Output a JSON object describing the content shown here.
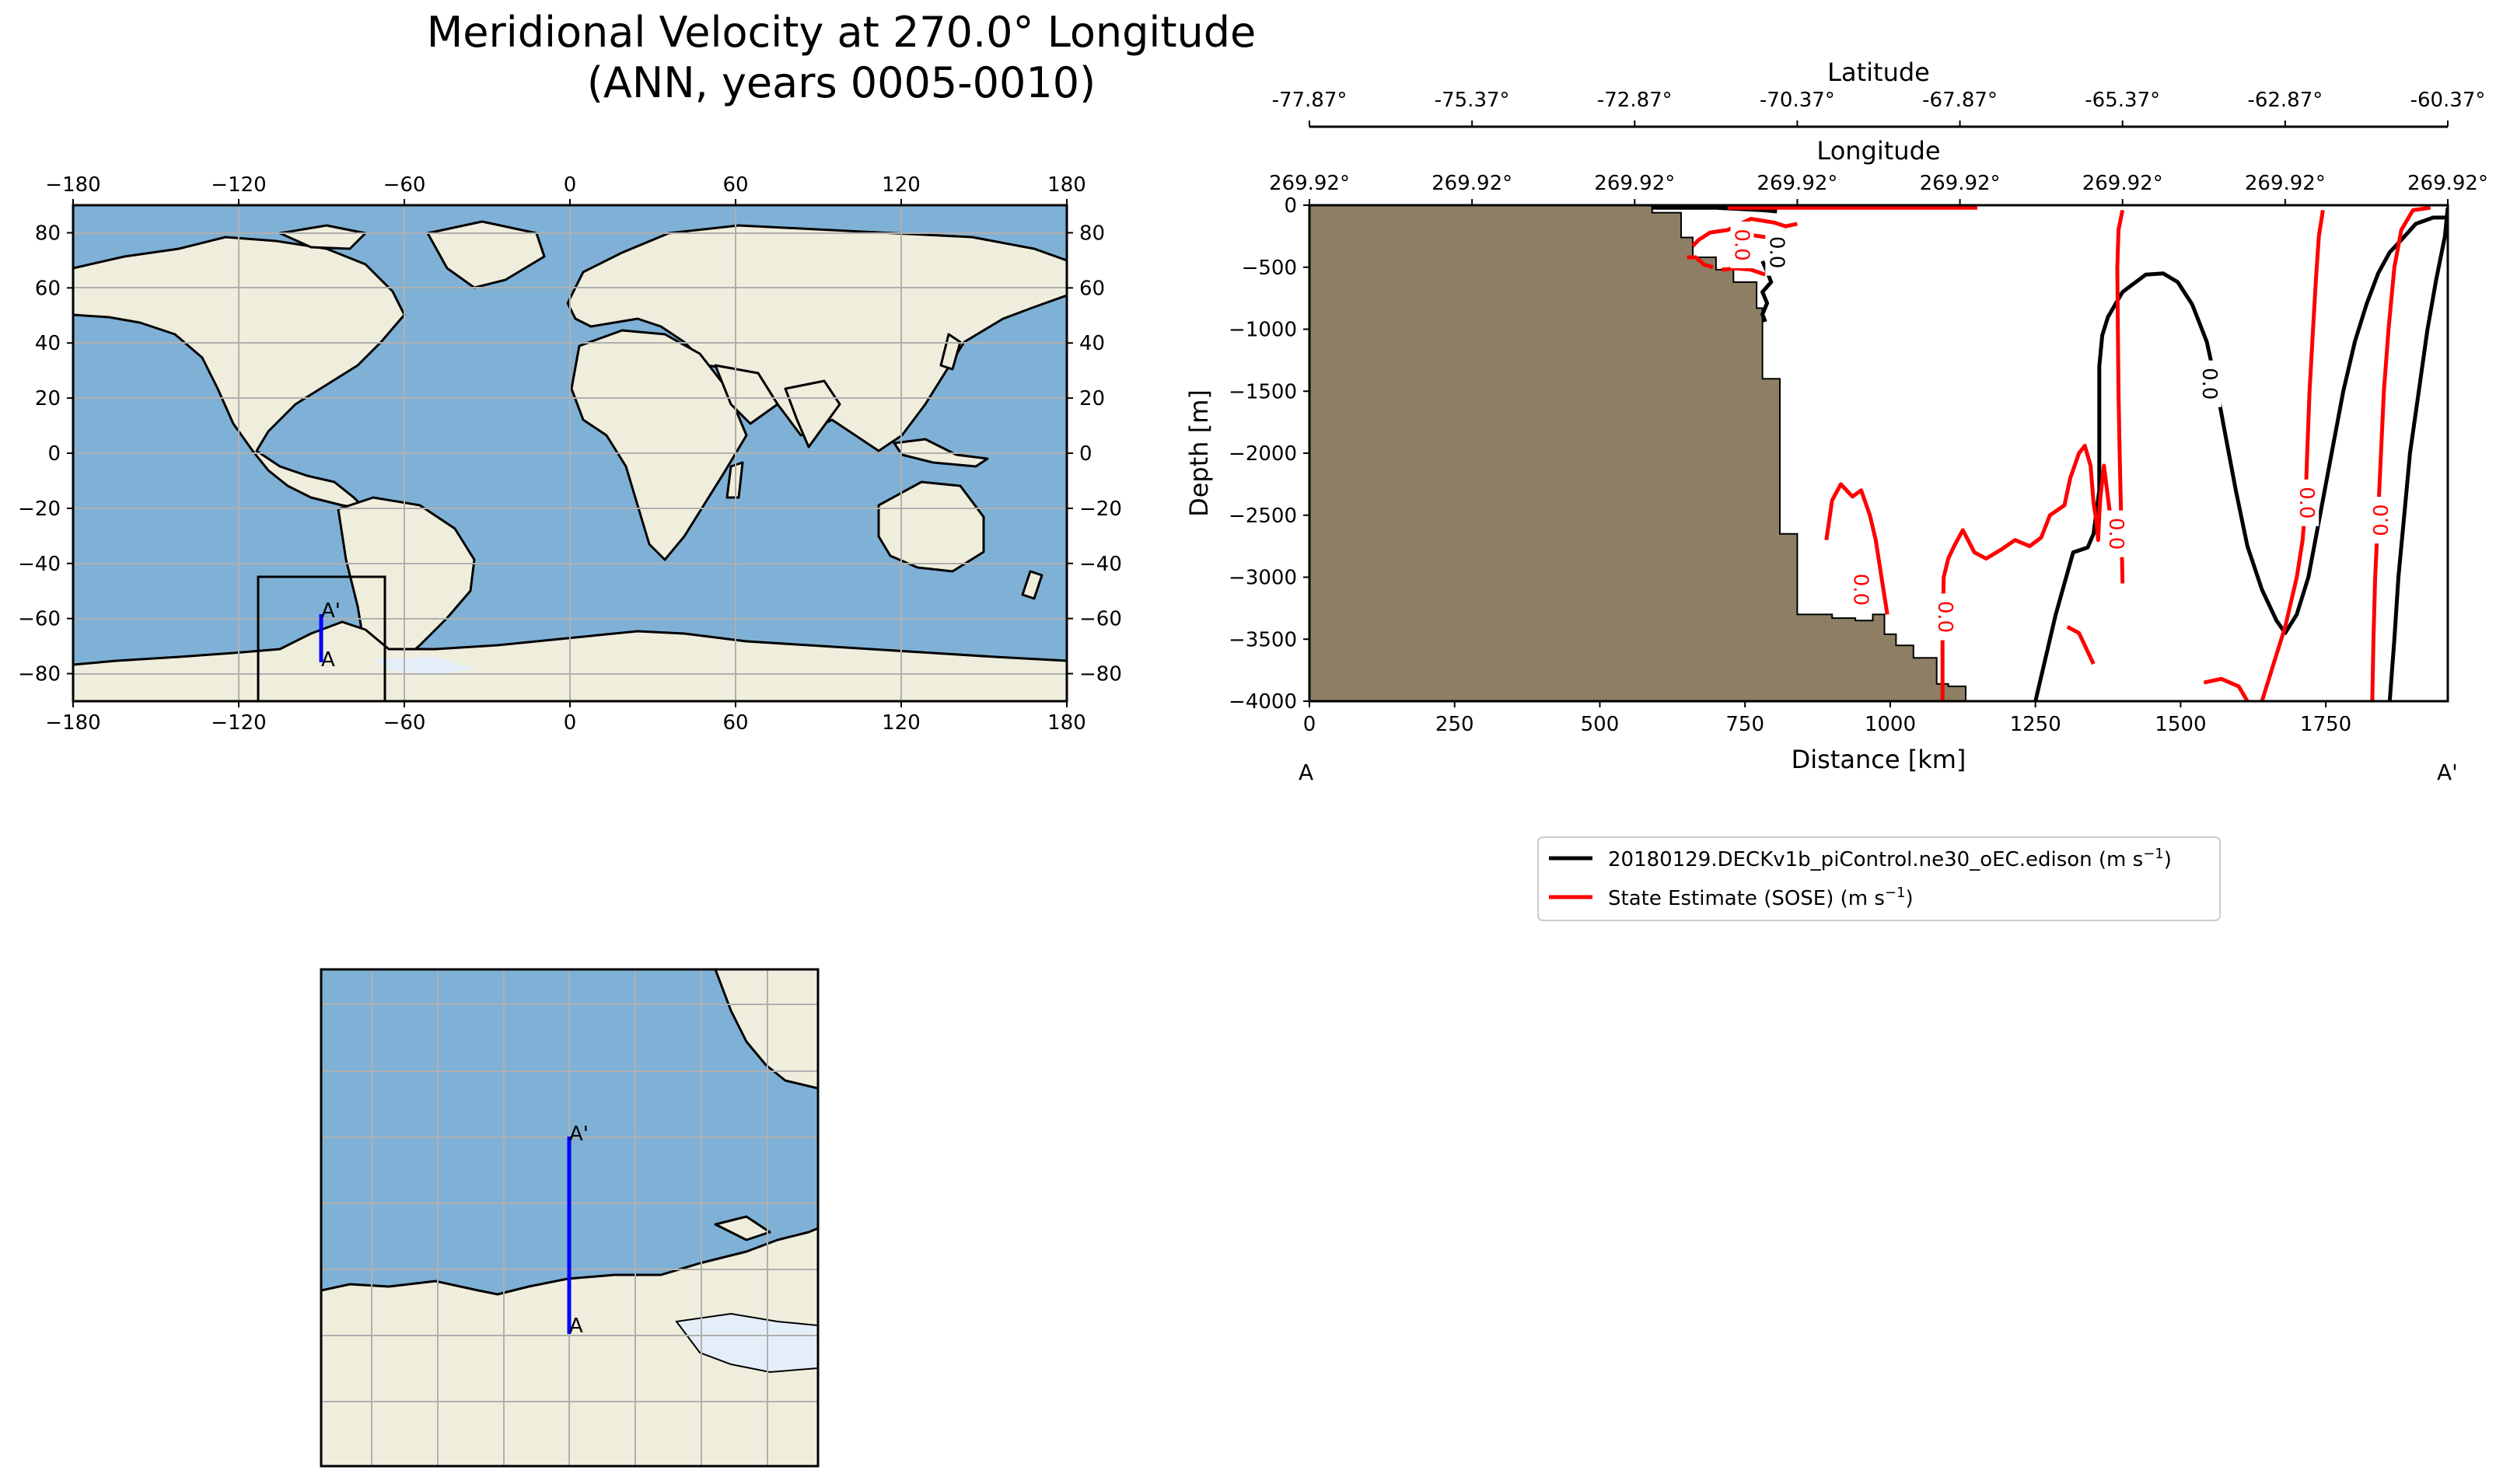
{
  "figure": {
    "title_line1": "Meridional Velocity at 270.0° Longitude",
    "title_line2": "(ANN, years 0005-0010)"
  },
  "colors": {
    "ocean": "#7fb1d6",
    "land": "#efeddc",
    "ice": "#e3eef8",
    "seafloor": "#8e7f64",
    "model": "#000000",
    "obs": "#ff0000",
    "transect": "#0000ff",
    "grid": "#b0b0b0"
  },
  "chart_data": [
    {
      "type": "map",
      "name": "global-map",
      "xticks": [
        -180,
        -120,
        -60,
        0,
        60,
        120,
        180
      ],
      "yticks": [
        80,
        60,
        40,
        20,
        0,
        -20,
        -40,
        -60,
        -80
      ],
      "xlim": [
        -180,
        180
      ],
      "ylim": [
        -90,
        90
      ],
      "inset_box": {
        "lon": [
          -113,
          -67
        ],
        "lat": [
          -90,
          -44
        ]
      },
      "transect": {
        "lon": -90,
        "lat_start": -77.87,
        "lat_end": -60.37,
        "start_label": "A",
        "end_label": "A'"
      }
    },
    {
      "type": "map",
      "name": "zoom-map",
      "lon_range": [
        -113,
        -67
      ],
      "lat_range": [
        -90,
        -44
      ],
      "transect": {
        "lon": -90,
        "lat_start": -77.87,
        "lat_end": -60.37,
        "start_label": "A",
        "end_label": "A'"
      }
    },
    {
      "type": "contour",
      "name": "transect-section",
      "xlabel": "Distance [km]",
      "ylabel": "Depth [m]",
      "top_axis_label": "Latitude",
      "middle_axis_label": "Longitude",
      "xlim": [
        0,
        1960
      ],
      "ylim": [
        -4000,
        0
      ],
      "xticks": [
        0,
        250,
        500,
        750,
        1000,
        1250,
        1500,
        1750
      ],
      "yticks": [
        0,
        -500,
        -1000,
        -1500,
        -2000,
        -2500,
        -3000,
        -3500,
        -4000
      ],
      "longitude_ticks": [
        "269.92°",
        "269.92°",
        "269.92°",
        "269.92°",
        "269.92°",
        "269.92°",
        "269.92°",
        "269.92°"
      ],
      "latitude_ticks": [
        "-77.87°",
        "-75.37°",
        "-72.87°",
        "-70.37°",
        "-67.87°",
        "-65.37°",
        "-62.87°",
        "-60.37°"
      ],
      "start_label": "A",
      "end_label": "A'",
      "contour_label": "0.0",
      "seafloor": [
        [
          0,
          -4000
        ],
        [
          0,
          0
        ],
        [
          590,
          0
        ],
        [
          590,
          -60
        ],
        [
          640,
          -60
        ],
        [
          640,
          -260
        ],
        [
          660,
          -260
        ],
        [
          660,
          -420
        ],
        [
          700,
          -420
        ],
        [
          700,
          -520
        ],
        [
          730,
          -520
        ],
        [
          730,
          -620
        ],
        [
          770,
          -620
        ],
        [
          770,
          -830
        ],
        [
          780,
          -830
        ],
        [
          780,
          -1400
        ],
        [
          810,
          -1400
        ],
        [
          810,
          -2650
        ],
        [
          840,
          -2650
        ],
        [
          840,
          -3300
        ],
        [
          900,
          -3300
        ],
        [
          900,
          -3330
        ],
        [
          940,
          -3330
        ],
        [
          940,
          -3350
        ],
        [
          970,
          -3350
        ],
        [
          970,
          -3300
        ],
        [
          990,
          -3300
        ],
        [
          990,
          -3460
        ],
        [
          1010,
          -3460
        ],
        [
          1010,
          -3550
        ],
        [
          1040,
          -3550
        ],
        [
          1040,
          -3650
        ],
        [
          1080,
          -3650
        ],
        [
          1080,
          -3860
        ],
        [
          1100,
          -3860
        ],
        [
          1100,
          -3880
        ],
        [
          1130,
          -3880
        ],
        [
          1130,
          -4000
        ]
      ],
      "series": [
        {
          "name": "20180129.DECKv1b_piControl.ne30_oEC.edison",
          "legend_units": "(m s",
          "color": "#000000",
          "contours": [
            [
              [
                590,
                -20
              ],
              [
                700,
                -20
              ],
              [
                780,
                -40
              ],
              [
                805,
                -50
              ]
            ],
            [
              [
                780,
                -450
              ],
              [
                790,
                -560
              ],
              [
                795,
                -620
              ],
              [
                780,
                -700
              ],
              [
                788,
                -790
              ],
              [
                780,
                -880
              ],
              [
                785,
                -940
              ]
            ],
            [
              [
                1250,
                -4000
              ],
              [
                1265,
                -3700
              ],
              [
                1285,
                -3300
              ],
              [
                1300,
                -3050
              ],
              [
                1315,
                -2800
              ],
              [
                1340,
                -2760
              ],
              [
                1350,
                -2650
              ],
              [
                1360,
                -2300
              ],
              [
                1360,
                -1800
              ],
              [
                1360,
                -1300
              ],
              [
                1365,
                -1050
              ],
              [
                1375,
                -900
              ],
              [
                1400,
                -700
              ],
              [
                1440,
                -560
              ],
              [
                1470,
                -550
              ],
              [
                1495,
                -620
              ],
              [
                1520,
                -800
              ],
              [
                1545,
                -1100
              ],
              [
                1560,
                -1420
              ],
              [
                1575,
                -1800
              ],
              [
                1595,
                -2300
              ],
              [
                1615,
                -2750
              ],
              [
                1640,
                -3100
              ],
              [
                1665,
                -3350
              ],
              [
                1680,
                -3450
              ],
              [
                1700,
                -3300
              ],
              [
                1720,
                -3000
              ],
              [
                1740,
                -2500
              ],
              [
                1760,
                -2000
              ],
              [
                1780,
                -1500
              ],
              [
                1800,
                -1100
              ],
              [
                1820,
                -800
              ],
              [
                1840,
                -550
              ],
              [
                1860,
                -380
              ],
              [
                1880,
                -280
              ],
              [
                1905,
                -150
              ],
              [
                1935,
                -100
              ],
              [
                1960,
                -100
              ]
            ],
            [
              [
                1860,
                -4000
              ],
              [
                1868,
                -3500
              ],
              [
                1875,
                -3000
              ],
              [
                1885,
                -2500
              ],
              [
                1895,
                -2000
              ],
              [
                1910,
                -1500
              ],
              [
                1925,
                -1000
              ],
              [
                1940,
                -600
              ],
              [
                1955,
                -250
              ],
              [
                1960,
                -20
              ]
            ]
          ]
        },
        {
          "name": "State Estimate (SOSE)",
          "legend_units": "(m s",
          "color": "#ff0000",
          "contours": [
            [
              [
                720,
                -20
              ],
              [
                1150,
                -20
              ]
            ],
            [
              [
                660,
                -330
              ],
              [
                670,
                -280
              ],
              [
                690,
                -220
              ],
              [
                720,
                -200
              ],
              [
                760,
                -110
              ],
              [
                800,
                -140
              ],
              [
                820,
                -170
              ],
              [
                840,
                -150
              ]
            ],
            [
              [
                650,
                -420
              ],
              [
                665,
                -420
              ],
              [
                680,
                -480
              ],
              [
                695,
                -500
              ]
            ],
            [
              [
                710,
                -520
              ],
              [
                735,
                -510
              ],
              [
                760,
                -520
              ],
              [
                785,
                -560
              ]
            ],
            [
              [
                760,
                -240
              ],
              [
                790,
                -260
              ],
              [
                810,
                -300
              ]
            ],
            [
              [
                890,
                -2700
              ],
              [
                900,
                -2380
              ],
              [
                915,
                -2250
              ],
              [
                935,
                -2350
              ],
              [
                950,
                -2300
              ],
              [
                965,
                -2500
              ],
              [
                975,
                -2700
              ],
              [
                985,
                -3000
              ],
              [
                995,
                -3300
              ]
            ],
            [
              [
                1090,
                -4000
              ],
              [
                1090,
                -3500
              ],
              [
                1092,
                -3000
              ],
              [
                1100,
                -2850
              ],
              [
                1110,
                -2750
              ],
              [
                1125,
                -2620
              ],
              [
                1145,
                -2800
              ],
              [
                1165,
                -2850
              ],
              [
                1190,
                -2780
              ],
              [
                1215,
                -2700
              ],
              [
                1240,
                -2750
              ],
              [
                1260,
                -2680
              ],
              [
                1275,
                -2500
              ],
              [
                1300,
                -2420
              ],
              [
                1310,
                -2200
              ],
              [
                1325,
                -2000
              ],
              [
                1335,
                -1940
              ],
              [
                1345,
                -2100
              ],
              [
                1350,
                -2400
              ],
              [
                1355,
                -2550
              ],
              [
                1358,
                -2700
              ],
              [
                1360,
                -2500
              ],
              [
                1362,
                -2350
              ],
              [
                1368,
                -2100
              ],
              [
                1380,
                -2550
              ],
              [
                1390,
                -2600
              ]
            ],
            [
              [
                1305,
                -3400
              ],
              [
                1325,
                -3450
              ],
              [
                1340,
                -3600
              ],
              [
                1350,
                -3700
              ]
            ],
            [
              [
                1400,
                -3050
              ],
              [
                1398,
                -2600
              ],
              [
                1395,
                -2000
              ],
              [
                1393,
                -1500
              ],
              [
                1392,
                -1000
              ],
              [
                1391,
                -500
              ],
              [
                1393,
                -200
              ],
              [
                1400,
                -40
              ]
            ],
            [
              [
                1640,
                -4000
              ],
              [
                1660,
                -3700
              ],
              [
                1680,
                -3400
              ],
              [
                1700,
                -3000
              ],
              [
                1710,
                -2700
              ],
              [
                1715,
                -2400
              ],
              [
                1718,
                -2000
              ],
              [
                1722,
                -1500
              ],
              [
                1728,
                -1000
              ],
              [
                1733,
                -600
              ],
              [
                1738,
                -250
              ],
              [
                1745,
                -40
              ]
            ],
            [
              [
                1540,
                -3850
              ],
              [
                1570,
                -3820
              ],
              [
                1600,
                -3880
              ],
              [
                1615,
                -4000
              ]
            ],
            [
              [
                1830,
                -4000
              ],
              [
                1832,
                -3500
              ],
              [
                1835,
                -3000
              ],
              [
                1840,
                -2500
              ],
              [
                1845,
                -2000
              ],
              [
                1850,
                -1500
              ],
              [
                1858,
                -1000
              ],
              [
                1868,
                -500
              ],
              [
                1880,
                -200
              ],
              [
                1900,
                -40
              ],
              [
                1930,
                -20
              ]
            ]
          ]
        }
      ]
    }
  ]
}
